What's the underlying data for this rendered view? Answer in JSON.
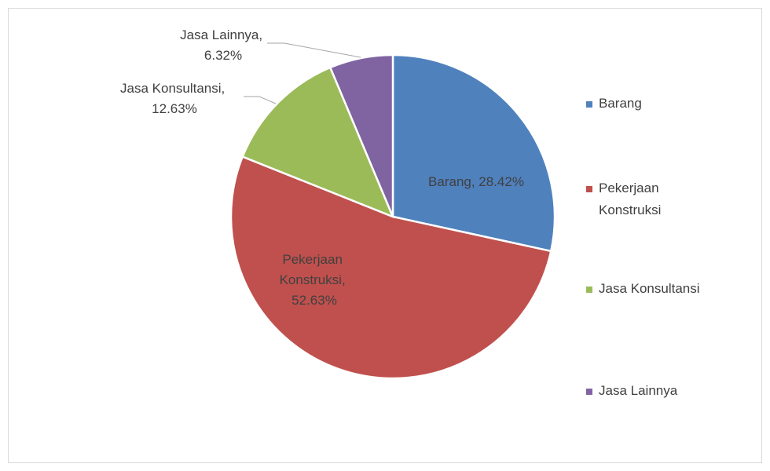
{
  "chart_data": {
    "type": "pie",
    "categories": [
      "Barang",
      "Pekerjaan Konstruksi",
      "Jasa Konsultansi",
      "Jasa Lainnya"
    ],
    "values": [
      28.42,
      52.63,
      12.63,
      6.32
    ],
    "value_labels": [
      "Barang, 28.42%",
      "Pekerjaan Konstruksi, 52.63%",
      "Jasa Konsultansi, 12.63%",
      "Jasa Lainnya, 6.32%"
    ],
    "colors": [
      "#4f81bd",
      "#c0504d",
      "#9bbb59",
      "#8064a2"
    ],
    "legend": "right"
  }
}
